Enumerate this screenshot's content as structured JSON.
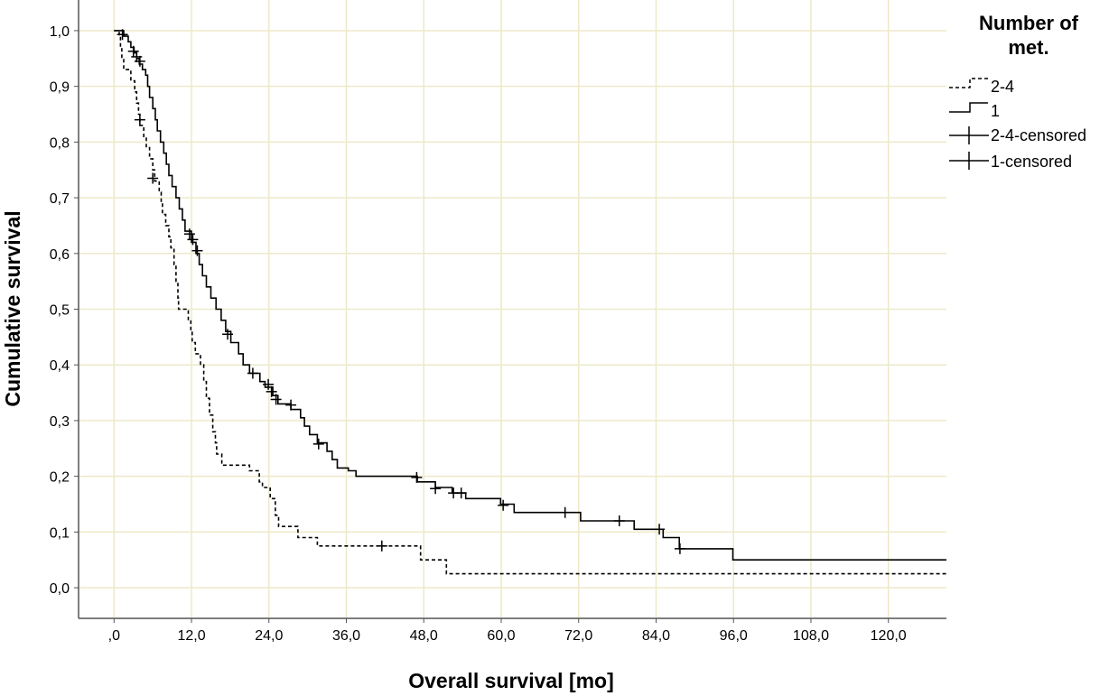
{
  "chart_data": {
    "type": "line",
    "subtype": "kaplan-meier step",
    "xlabel": "Overall survival [mo]",
    "ylabel": "Cumulative survival",
    "xlim": [
      -5.5,
      129
    ],
    "ylim": [
      -0.055,
      1.055
    ],
    "x_ticks": [
      0,
      12,
      24,
      36,
      48,
      60,
      72,
      84,
      96,
      108,
      120
    ],
    "x_tick_labels": [
      ",0",
      "12,0",
      "24,0",
      "36,0",
      "48,0",
      "60,0",
      "72,0",
      "84,0",
      "96,0",
      "108,0",
      "120,0"
    ],
    "y_ticks": [
      0,
      0.1,
      0.2,
      0.3,
      0.4,
      0.5,
      0.6,
      0.7,
      0.8,
      0.9,
      1.0
    ],
    "y_tick_labels": [
      "0,0",
      "0,1",
      "0,2",
      "0,3",
      "0,4",
      "0,5",
      "0,6",
      "0,7",
      "0,8",
      "0,9",
      "1,0"
    ],
    "grid": true,
    "grid_color": "#ede9c9",
    "legend": {
      "title": "Number of met.",
      "title_lines": [
        "Number of",
        "met."
      ],
      "position": "top-right",
      "entries": [
        "2-4",
        "1",
        "2-4-censored",
        "1-censored"
      ]
    },
    "series": [
      {
        "name": "2-4",
        "style": "dashed",
        "color": "#000000",
        "steps": [
          [
            0,
            1.0
          ],
          [
            0.8,
            0.99
          ],
          [
            1.0,
            0.97
          ],
          [
            1.2,
            0.95
          ],
          [
            1.5,
            0.93
          ],
          [
            2.6,
            0.91
          ],
          [
            3.2,
            0.89
          ],
          [
            3.5,
            0.87
          ],
          [
            3.8,
            0.85
          ],
          [
            4.0,
            0.83
          ],
          [
            4.6,
            0.81
          ],
          [
            5.0,
            0.79
          ],
          [
            5.5,
            0.77
          ],
          [
            6.0,
            0.75
          ],
          [
            6.3,
            0.73
          ],
          [
            7.0,
            0.71
          ],
          [
            7.3,
            0.69
          ],
          [
            7.5,
            0.67
          ],
          [
            8.0,
            0.65
          ],
          [
            8.5,
            0.63
          ],
          [
            8.8,
            0.61
          ],
          [
            9.3,
            0.58
          ],
          [
            9.6,
            0.55
          ],
          [
            9.9,
            0.52
          ],
          [
            10.0,
            0.5
          ],
          [
            11.5,
            0.48
          ],
          [
            11.9,
            0.46
          ],
          [
            12.1,
            0.44
          ],
          [
            12.6,
            0.42
          ],
          [
            13.4,
            0.4
          ],
          [
            13.9,
            0.37
          ],
          [
            14.3,
            0.34
          ],
          [
            14.8,
            0.31
          ],
          [
            15.3,
            0.28
          ],
          [
            15.7,
            0.26
          ],
          [
            15.9,
            0.24
          ],
          [
            16.7,
            0.22
          ],
          [
            21.0,
            0.21
          ],
          [
            22.5,
            0.19
          ],
          [
            23.0,
            0.18
          ],
          [
            24.2,
            0.16
          ],
          [
            25.0,
            0.13
          ],
          [
            25.5,
            0.11
          ],
          [
            28.5,
            0.09
          ],
          [
            31.5,
            0.075
          ],
          [
            47.5,
            0.05
          ],
          [
            51.5,
            0.025
          ],
          [
            129,
            0.025
          ]
        ],
        "censored": [
          [
            4.0,
            0.84
          ],
          [
            6.0,
            0.735
          ],
          [
            41.5,
            0.075
          ]
        ]
      },
      {
        "name": "1",
        "style": "solid",
        "color": "#000000",
        "steps": [
          [
            0,
            1.0
          ],
          [
            1.5,
            0.99
          ],
          [
            2.2,
            0.98
          ],
          [
            2.6,
            0.97
          ],
          [
            3.1,
            0.96
          ],
          [
            3.5,
            0.95
          ],
          [
            3.9,
            0.94
          ],
          [
            4.4,
            0.93
          ],
          [
            4.9,
            0.92
          ],
          [
            5.2,
            0.9
          ],
          [
            5.5,
            0.88
          ],
          [
            6.0,
            0.86
          ],
          [
            6.4,
            0.84
          ],
          [
            6.7,
            0.82
          ],
          [
            7.2,
            0.8
          ],
          [
            7.7,
            0.78
          ],
          [
            8.1,
            0.76
          ],
          [
            8.5,
            0.74
          ],
          [
            9.0,
            0.72
          ],
          [
            9.6,
            0.7
          ],
          [
            10.1,
            0.68
          ],
          [
            10.6,
            0.66
          ],
          [
            11.0,
            0.64
          ],
          [
            12.0,
            0.62
          ],
          [
            12.7,
            0.6
          ],
          [
            13.2,
            0.58
          ],
          [
            13.7,
            0.56
          ],
          [
            14.3,
            0.54
          ],
          [
            15.0,
            0.52
          ],
          [
            15.8,
            0.5
          ],
          [
            16.6,
            0.48
          ],
          [
            17.3,
            0.46
          ],
          [
            18.1,
            0.44
          ],
          [
            19.3,
            0.42
          ],
          [
            20.0,
            0.4
          ],
          [
            21.0,
            0.385
          ],
          [
            22.6,
            0.37
          ],
          [
            23.4,
            0.36
          ],
          [
            24.6,
            0.345
          ],
          [
            25.4,
            0.33
          ],
          [
            27.4,
            0.32
          ],
          [
            28.9,
            0.305
          ],
          [
            29.5,
            0.29
          ],
          [
            30.3,
            0.275
          ],
          [
            31.5,
            0.26
          ],
          [
            33.0,
            0.245
          ],
          [
            33.8,
            0.23
          ],
          [
            34.6,
            0.215
          ],
          [
            36.3,
            0.21
          ],
          [
            37.5,
            0.2
          ],
          [
            47.0,
            0.19
          ],
          [
            49.8,
            0.18
          ],
          [
            52.4,
            0.17
          ],
          [
            54.5,
            0.16
          ],
          [
            59.9,
            0.15
          ],
          [
            62.0,
            0.135
          ],
          [
            70.0,
            0.135
          ],
          [
            72.3,
            0.12
          ],
          [
            80.6,
            0.105
          ],
          [
            85.1,
            0.09
          ],
          [
            87.6,
            0.07
          ],
          [
            95.9,
            0.05
          ],
          [
            129,
            0.05
          ]
        ],
        "censored": [
          [
            1.3,
            0.993
          ],
          [
            3.0,
            0.963
          ],
          [
            3.5,
            0.953
          ],
          [
            4.0,
            0.945
          ],
          [
            11.7,
            0.635
          ],
          [
            12.2,
            0.625
          ],
          [
            12.9,
            0.605
          ],
          [
            17.6,
            0.455
          ],
          [
            21.5,
            0.385
          ],
          [
            23.9,
            0.365
          ],
          [
            24.4,
            0.352
          ],
          [
            25.1,
            0.338
          ],
          [
            27.4,
            0.328
          ],
          [
            31.7,
            0.258
          ],
          [
            46.9,
            0.198
          ],
          [
            49.8,
            0.178
          ],
          [
            52.6,
            0.17
          ],
          [
            53.8,
            0.17
          ],
          [
            60.3,
            0.148
          ],
          [
            69.9,
            0.135
          ],
          [
            78.3,
            0.12
          ],
          [
            84.5,
            0.105
          ],
          [
            87.7,
            0.07
          ]
        ]
      }
    ]
  }
}
